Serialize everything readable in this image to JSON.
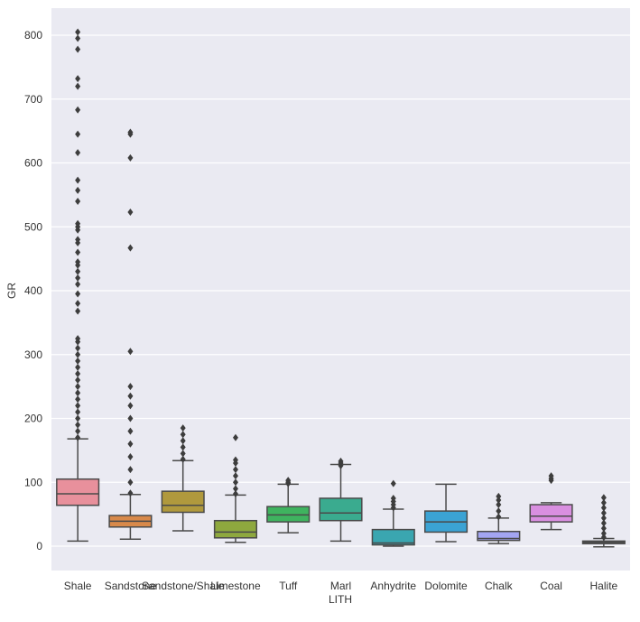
{
  "chart_data": {
    "type": "box",
    "title": "",
    "xlabel": "LITH",
    "ylabel": "GR",
    "ylim": [
      -40,
      840
    ],
    "yticks": [
      0,
      100,
      200,
      300,
      400,
      500,
      600,
      700,
      800
    ],
    "grid": true,
    "background": "#eaeaf2",
    "categories": [
      "Shale",
      "Sandstone",
      "Sandstone/Shale",
      "Limestone",
      "Tuff",
      "Marl",
      "Anhydrite",
      "Dolomite",
      "Chalk",
      "Coal",
      "Halite"
    ],
    "series": [
      {
        "name": "Shale",
        "color": "#e8909c",
        "whisker_low": 8,
        "q1": 64,
        "median": 82,
        "q3": 105,
        "whisker_high": 168,
        "outliers": [
          170,
          180,
          190,
          200,
          210,
          220,
          230,
          240,
          250,
          260,
          270,
          280,
          290,
          300,
          310,
          320,
          325,
          368,
          380,
          395,
          410,
          420,
          430,
          440,
          445,
          460,
          475,
          480,
          495,
          500,
          505,
          540,
          557,
          573,
          616,
          645,
          683,
          720,
          732,
          778,
          795,
          805
        ]
      },
      {
        "name": "Sandstone",
        "color": "#d8894a",
        "whisker_low": 11,
        "q1": 30,
        "median": 39,
        "q3": 48,
        "whisker_high": 81,
        "outliers": [
          83,
          100,
          120,
          140,
          160,
          180,
          200,
          220,
          235,
          250,
          305,
          467,
          523,
          608,
          645,
          648
        ]
      },
      {
        "name": "Sandstone/Shale",
        "color": "#b0993d",
        "whisker_low": 24,
        "q1": 53,
        "median": 64,
        "q3": 86,
        "whisker_high": 134,
        "outliers": [
          136,
          145,
          155,
          165,
          175,
          185
        ]
      },
      {
        "name": "Limestone",
        "color": "#8ea83e",
        "whisker_low": 6,
        "q1": 13,
        "median": 22,
        "q3": 40,
        "whisker_high": 80,
        "outliers": [
          82,
          90,
          100,
          110,
          120,
          130,
          135,
          170
        ]
      },
      {
        "name": "Tuff",
        "color": "#3fb35f",
        "whisker_low": 21,
        "q1": 38,
        "median": 49,
        "q3": 62,
        "whisker_high": 97,
        "outliers": [
          98,
          100,
          103
        ]
      },
      {
        "name": "Marl",
        "color": "#3aab8f",
        "whisker_low": 8,
        "q1": 40,
        "median": 52,
        "q3": 75,
        "whisker_high": 128,
        "outliers": [
          126,
          130,
          133
        ]
      },
      {
        "name": "Anhydrite",
        "color": "#3aa6b0",
        "whisker_low": 0,
        "q1": 2,
        "median": 5,
        "q3": 26,
        "whisker_high": 58,
        "outliers": [
          60,
          65,
          70,
          75,
          98
        ]
      },
      {
        "name": "Dolomite",
        "color": "#3ba3d4",
        "whisker_low": 7,
        "q1": 22,
        "median": 38,
        "q3": 55,
        "whisker_high": 97,
        "outliers": []
      },
      {
        "name": "Chalk",
        "color": "#a3a5f2",
        "whisker_low": 4,
        "q1": 9,
        "median": 12,
        "q3": 23,
        "whisker_high": 44,
        "outliers": [
          46,
          55,
          65,
          72,
          78
        ]
      },
      {
        "name": "Coal",
        "color": "#d98fe0",
        "whisker_low": 26,
        "q1": 38,
        "median": 47,
        "q3": 65,
        "whisker_high": 68,
        "outliers": [
          103,
          106,
          110
        ]
      },
      {
        "name": "Halite",
        "color": "#e890c6",
        "whisker_low": -1,
        "q1": 4,
        "median": 6,
        "q3": 8,
        "whisker_high": 12,
        "outliers": [
          14,
          20,
          28,
          36,
          44,
          52,
          60,
          68,
          76
        ]
      }
    ]
  }
}
